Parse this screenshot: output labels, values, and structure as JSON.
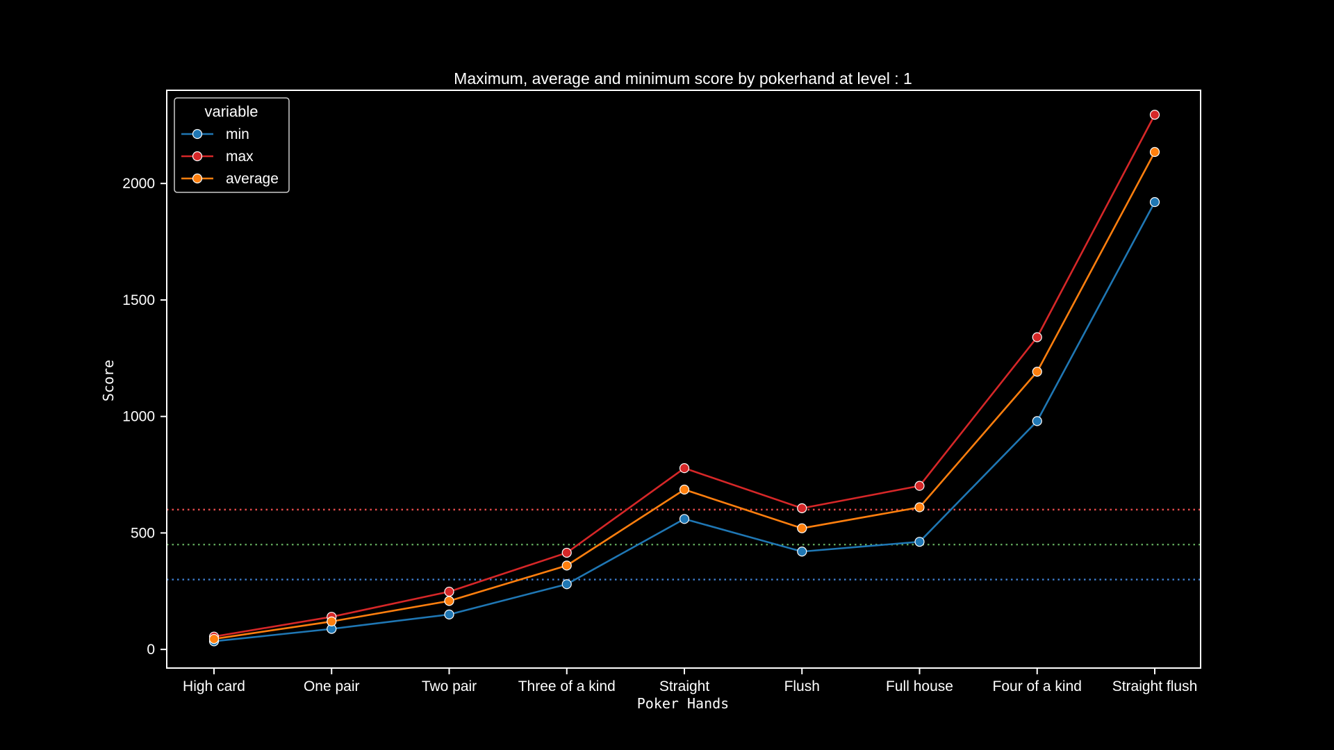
{
  "chart_data": {
    "type": "line",
    "title": "Maximum, average and minimum score by pokerhand at level : 1",
    "xlabel": "Poker Hands",
    "ylabel": "Score",
    "categories": [
      "High card",
      "One pair",
      "Two pair",
      "Three of a kind",
      "Straight",
      "Flush",
      "Full house",
      "Four of a kind",
      "Straight flush"
    ],
    "yticks": [
      0,
      500,
      1000,
      1500,
      2000
    ],
    "ytick_labels": [
      "0",
      "500",
      "1000",
      "1500",
      "2000"
    ],
    "ylim": [
      -80,
      2400
    ],
    "grid": false,
    "legend": {
      "title": "variable",
      "placement": "top-left"
    },
    "series": [
      {
        "name": "min",
        "color": "#1f77b4",
        "values": [
          35,
          88,
          150,
          280,
          560,
          420,
          462,
          980,
          1920
        ]
      },
      {
        "name": "max",
        "color": "#d62728",
        "values": [
          55,
          140,
          248,
          415,
          778,
          606,
          702,
          1340,
          2295
        ]
      },
      {
        "name": "average",
        "color": "#ff7f0e",
        "values": [
          45,
          120,
          208,
          360,
          686,
          520,
          610,
          1192,
          2135
        ]
      }
    ],
    "hlines": [
      {
        "value": 600,
        "color": "#e34a4a",
        "style": "dotted"
      },
      {
        "value": 450,
        "color": "#5fa55a",
        "style": "dotted"
      },
      {
        "value": 300,
        "color": "#3f7fd0",
        "style": "dotted"
      }
    ]
  }
}
